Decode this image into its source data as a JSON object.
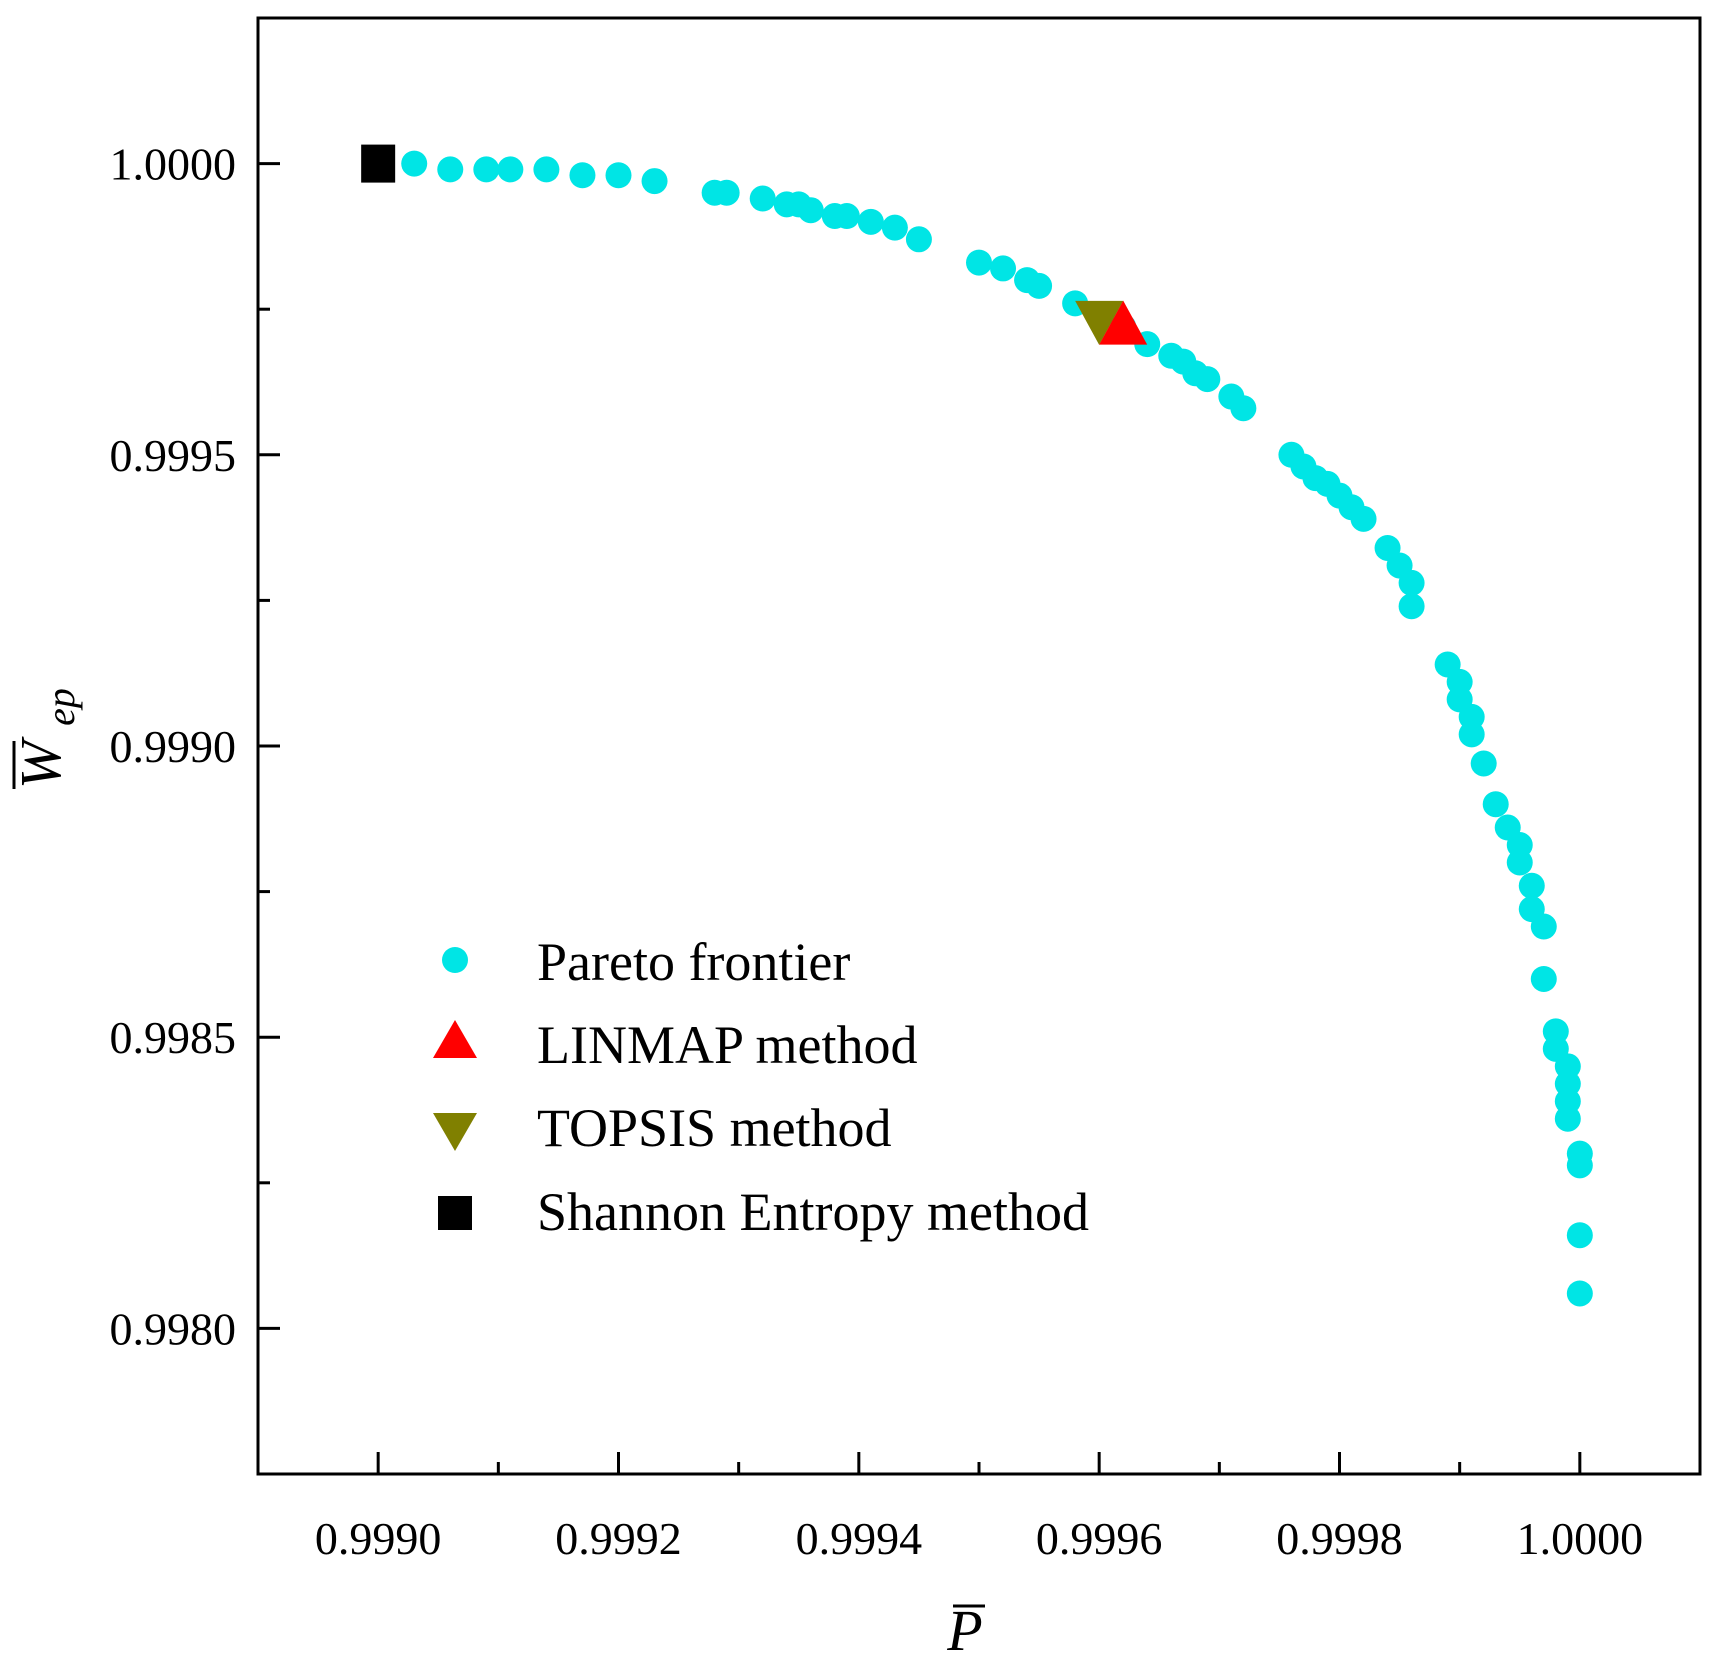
{
  "chart_data": {
    "type": "scatter",
    "title": "",
    "xlabel": "P̄",
    "ylabel": "W̄ep",
    "xlabel_main": "P",
    "ylabel_main": "W",
    "ylabel_subscript": "ep",
    "xlim": [
      0.9989,
      1.0001
    ],
    "ylim": [
      0.99775,
      1.00025
    ],
    "xticks": [
      "0.9990",
      "0.9992",
      "0.9994",
      "0.9996",
      "0.9998",
      "1.0000"
    ],
    "xtick_values": [
      0.999,
      0.9992,
      0.9994,
      0.9996,
      0.9998,
      1.0
    ],
    "yticks": [
      "0.9980",
      "0.9985",
      "0.9990",
      "0.9995",
      "1.0000"
    ],
    "ytick_values": [
      0.998,
      0.9985,
      0.999,
      0.9995,
      1.0
    ],
    "xminor": [
      0.9991,
      0.9993,
      0.9995,
      0.9997,
      0.9999
    ],
    "yminor": [
      0.99825,
      0.99875,
      0.99925,
      0.99975
    ],
    "legend_position": "lower-left",
    "series": [
      {
        "name": "Pareto frontier",
        "marker": "circle",
        "color": "#00e5e5",
        "points": [
          [
            0.99903,
            1.0
          ],
          [
            0.99906,
            0.99999
          ],
          [
            0.99909,
            0.99999
          ],
          [
            0.99911,
            0.99999
          ],
          [
            0.99914,
            0.99999
          ],
          [
            0.99917,
            0.99998
          ],
          [
            0.9992,
            0.99998
          ],
          [
            0.99923,
            0.99997
          ],
          [
            0.99928,
            0.99995
          ],
          [
            0.99929,
            0.99995
          ],
          [
            0.99932,
            0.99994
          ],
          [
            0.99934,
            0.99993
          ],
          [
            0.99935,
            0.99993
          ],
          [
            0.99936,
            0.99992
          ],
          [
            0.99938,
            0.99991
          ],
          [
            0.99939,
            0.99991
          ],
          [
            0.99941,
            0.9999
          ],
          [
            0.99943,
            0.99989
          ],
          [
            0.99945,
            0.99987
          ],
          [
            0.9995,
            0.99983
          ],
          [
            0.99952,
            0.99982
          ],
          [
            0.99954,
            0.9998
          ],
          [
            0.99955,
            0.99979
          ],
          [
            0.99958,
            0.99976
          ],
          [
            0.99962,
            0.99972
          ],
          [
            0.99964,
            0.99969
          ],
          [
            0.99966,
            0.99967
          ],
          [
            0.99967,
            0.99966
          ],
          [
            0.99968,
            0.99964
          ],
          [
            0.99969,
            0.99963
          ],
          [
            0.99971,
            0.9996
          ],
          [
            0.99972,
            0.99958
          ],
          [
            0.99976,
            0.9995
          ],
          [
            0.99977,
            0.99948
          ],
          [
            0.99978,
            0.99946
          ],
          [
            0.99979,
            0.99945
          ],
          [
            0.9998,
            0.99943
          ],
          [
            0.99981,
            0.99941
          ],
          [
            0.99982,
            0.99939
          ],
          [
            0.99984,
            0.99934
          ],
          [
            0.99985,
            0.99931
          ],
          [
            0.99986,
            0.99928
          ],
          [
            0.99986,
            0.99924
          ],
          [
            0.99989,
            0.99914
          ],
          [
            0.9999,
            0.99911
          ],
          [
            0.9999,
            0.99908
          ],
          [
            0.99991,
            0.99905
          ],
          [
            0.99991,
            0.99902
          ],
          [
            0.99992,
            0.99897
          ],
          [
            0.99993,
            0.9989
          ],
          [
            0.99994,
            0.99886
          ],
          [
            0.99995,
            0.99883
          ],
          [
            0.99995,
            0.9988
          ],
          [
            0.99996,
            0.99876
          ],
          [
            0.99996,
            0.99872
          ],
          [
            0.99997,
            0.99869
          ],
          [
            0.99997,
            0.9986
          ],
          [
            0.99998,
            0.99851
          ],
          [
            0.99998,
            0.99848
          ],
          [
            0.99999,
            0.99845
          ],
          [
            0.99999,
            0.99842
          ],
          [
            0.99999,
            0.99839
          ],
          [
            0.99999,
            0.99836
          ],
          [
            1.0,
            0.9983
          ],
          [
            1.0,
            0.99828
          ],
          [
            1.0,
            0.99816
          ],
          [
            1.0,
            0.99806
          ]
        ]
      },
      {
        "name": "LINMAP method",
        "marker": "triangle-up",
        "color": "#ff0000",
        "points": [
          [
            0.99962,
            0.99972
          ]
        ]
      },
      {
        "name": "TOPSIS method",
        "marker": "triangle-down",
        "color": "#808000",
        "points": [
          [
            0.9996,
            0.99973
          ]
        ]
      },
      {
        "name": "Shannon Entropy method",
        "marker": "square",
        "color": "#000000",
        "points": [
          [
            0.999,
            1.0
          ]
        ]
      }
    ]
  }
}
